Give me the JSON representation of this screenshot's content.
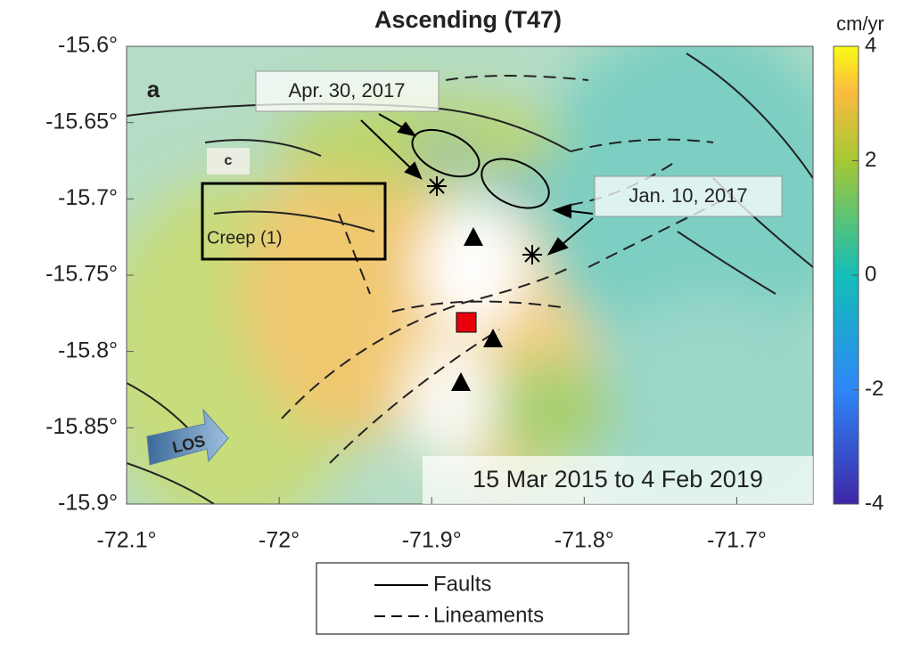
{
  "title": "Ascending (T47)",
  "panel_label": "a",
  "inset_label": "c",
  "xaxis": {
    "lim": [
      -72.1,
      -71.65
    ],
    "ticks": [
      {
        "value": -72.1,
        "label": "-72.1°"
      },
      {
        "value": -72,
        "label": "-72°"
      },
      {
        "value": -71.9,
        "label": "-71.9°"
      },
      {
        "value": -71.8,
        "label": "-71.8°"
      },
      {
        "value": -71.7,
        "label": "-71.7°"
      }
    ]
  },
  "yaxis": {
    "lim": [
      -15.9,
      -15.6
    ],
    "ticks": [
      {
        "value": -15.6,
        "label": "-15.6°"
      },
      {
        "value": -15.65,
        "label": "-15.65°"
      },
      {
        "value": -15.7,
        "label": "-15.7°"
      },
      {
        "value": -15.75,
        "label": "-15.75°"
      },
      {
        "value": -15.8,
        "label": "-15.8°"
      },
      {
        "value": -15.85,
        "label": "-15.85°"
      },
      {
        "value": -15.9,
        "label": "-15.9°"
      }
    ]
  },
  "colorbar": {
    "unit": "cm/yr",
    "lim": [
      -4,
      4
    ],
    "ticks": [
      4,
      2,
      0,
      -2,
      -4
    ]
  },
  "annotations": {
    "creep": "Creep (1)",
    "event1": "Apr. 30, 2017",
    "event2": "Jan. 10, 2017",
    "los": "LOS",
    "period": "15 Mar 2015 to 4 Feb 2019"
  },
  "legend": [
    "Faults",
    "Lineaments"
  ]
}
